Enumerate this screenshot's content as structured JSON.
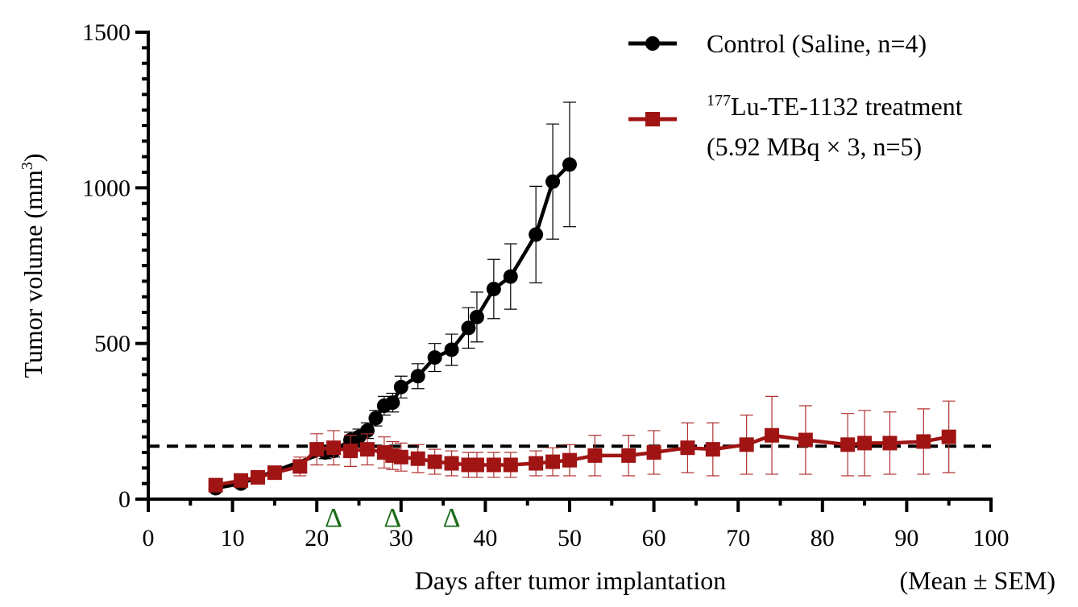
{
  "chart_data": {
    "type": "line",
    "xlabel": "Days after tumor implantation",
    "ylabel_main": "Tumor volume (mm",
    "ylabel_sup": "3",
    "ylabel_close": ")",
    "footnote": "(Mean ± SEM)",
    "xlim": [
      0,
      100
    ],
    "ylim": [
      0,
      1500
    ],
    "x_ticks": [
      0,
      10,
      20,
      30,
      40,
      50,
      60,
      70,
      80,
      90,
      100
    ],
    "y_ticks": [
      0,
      500,
      1000,
      1500
    ],
    "reference_line_y": 170,
    "dosing_days": [
      22,
      29,
      36
    ],
    "dosing_marker": "Δ",
    "dosing_color": "#1a6b1a",
    "legend_position": "top-right",
    "series": [
      {
        "name": "Control (Saline, n=4)",
        "label_lines": [
          "Control (Saline, n=4)"
        ],
        "marker": "circle",
        "color": "#000000",
        "x": [
          8,
          11,
          21,
          22,
          24,
          25,
          26,
          27,
          28,
          29,
          30,
          32,
          34,
          36,
          38,
          39,
          41,
          43,
          46,
          48,
          50
        ],
        "y": [
          35,
          50,
          150,
          155,
          190,
          200,
          220,
          260,
          300,
          310,
          360,
          395,
          455,
          480,
          550,
          585,
          675,
          715,
          850,
          1020,
          1075
        ],
        "err": [
          5,
          8,
          20,
          20,
          25,
          25,
          25,
          25,
          30,
          30,
          35,
          40,
          45,
          50,
          65,
          80,
          95,
          105,
          155,
          185,
          200
        ]
      },
      {
        "name": "177Lu-TE-1132 treatment (5.92 MBq × 3, n=5)",
        "label_sup": "177",
        "label_lines": [
          "Lu-TE-1132 treatment",
          "(5.92 MBq × 3, n=5)"
        ],
        "marker": "square",
        "color": "#a01414",
        "x": [
          8,
          11,
          13,
          15,
          18,
          20,
          22,
          24,
          26,
          28,
          29,
          30,
          32,
          34,
          36,
          38,
          39,
          41,
          43,
          46,
          48,
          50,
          53,
          57,
          60,
          64,
          67,
          71,
          74,
          78,
          83,
          85,
          88,
          92,
          95
        ],
        "y": [
          45,
          60,
          70,
          85,
          105,
          160,
          165,
          155,
          160,
          150,
          140,
          135,
          130,
          120,
          115,
          110,
          110,
          110,
          110,
          115,
          120,
          125,
          140,
          140,
          150,
          165,
          160,
          175,
          205,
          190,
          175,
          180,
          180,
          185,
          200
        ],
        "err": [
          10,
          12,
          15,
          20,
          30,
          50,
          55,
          50,
          50,
          50,
          45,
          45,
          45,
          40,
          40,
          40,
          40,
          40,
          40,
          40,
          45,
          50,
          65,
          65,
          70,
          80,
          85,
          95,
          125,
          110,
          100,
          105,
          100,
          105,
          115
        ]
      }
    ]
  }
}
